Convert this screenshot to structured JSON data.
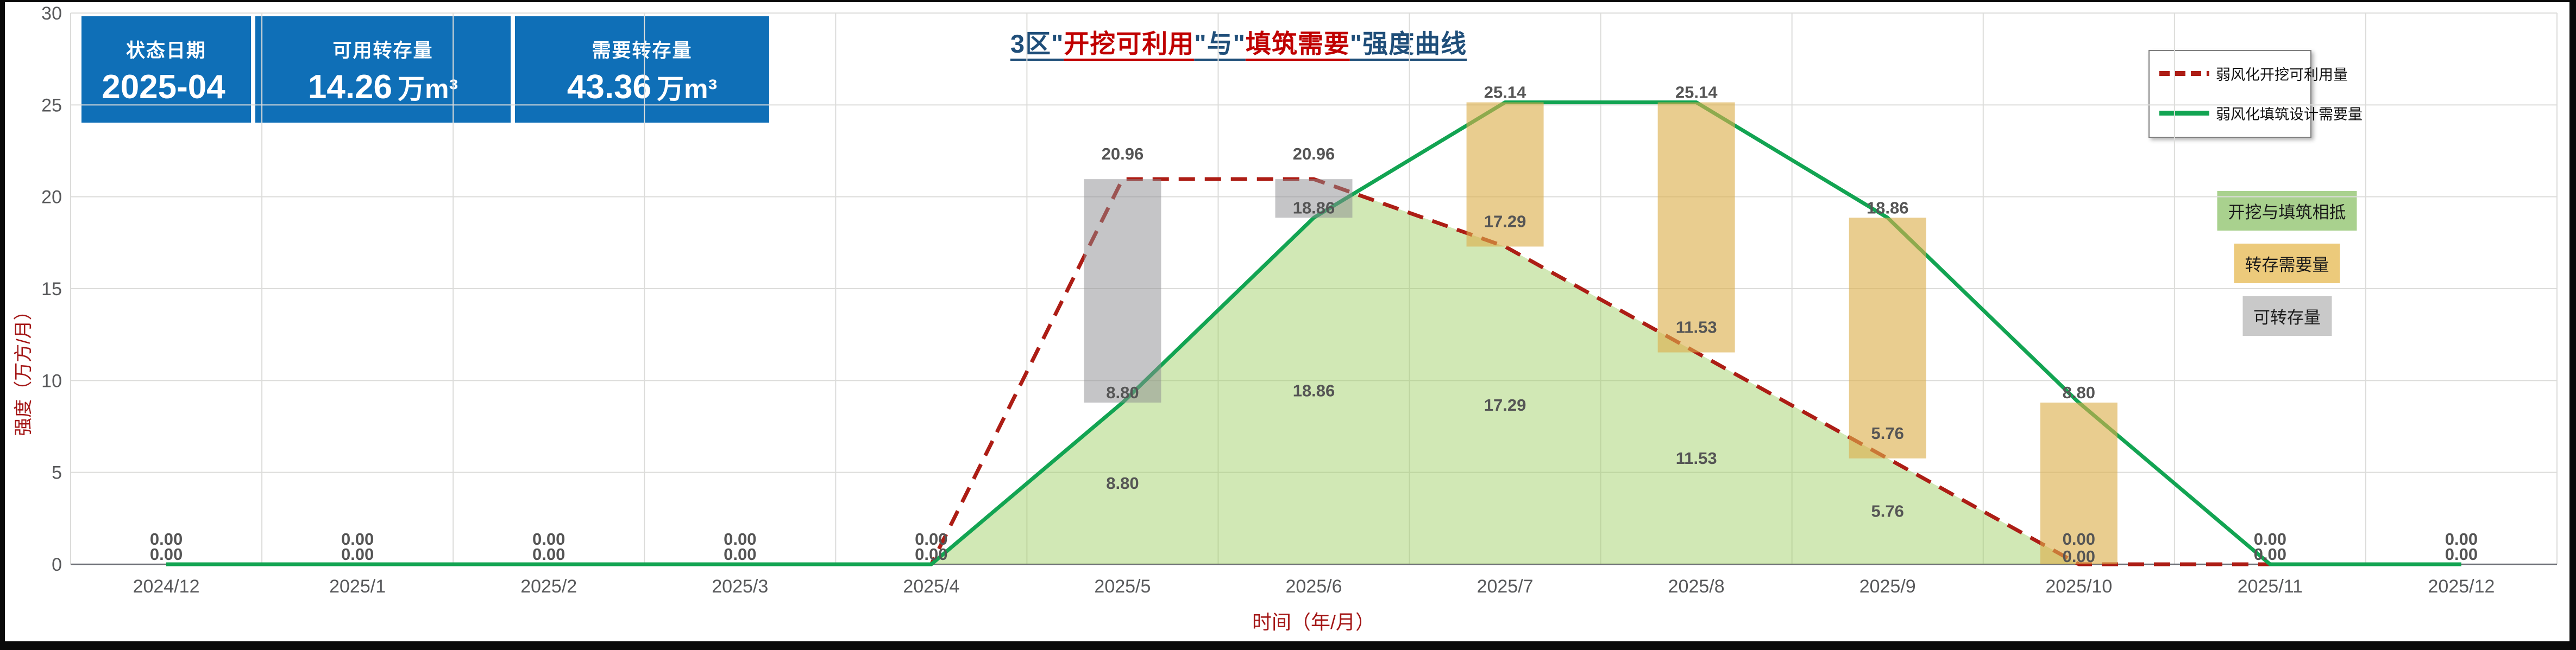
{
  "stat_cards": [
    {
      "label": "状态日期",
      "value": "2025-04",
      "unit": ""
    },
    {
      "label": "可用转存量",
      "value": "14.26",
      "unit": "万m³"
    },
    {
      "label": "需要转存量",
      "value": "43.36",
      "unit": "万m³"
    }
  ],
  "title": {
    "full_text": "3区\"开挖可利用\"与\"填筑需要\"强度曲线",
    "segments": [
      {
        "text": "3区\"",
        "color": "#1f4e79"
      },
      {
        "text": "开挖可利用",
        "color": "#c00000"
      },
      {
        "text": "\"与\"",
        "color": "#1f4e79"
      },
      {
        "text": "填筑需要",
        "color": "#c00000"
      },
      {
        "text": "\"强度曲线",
        "color": "#1f4e79"
      }
    ]
  },
  "legend": {
    "items": [
      {
        "label": "弱风化开挖可利用量",
        "color": "#ad1d15",
        "dash": true
      },
      {
        "label": "弱风化填筑设计需要量",
        "color": "#12a452",
        "dash": false
      }
    ]
  },
  "chips": [
    {
      "label": "开挖与填筑相抵",
      "bg": "#a9d18e"
    },
    {
      "label": "转存需要量",
      "bg": "#ecca7b"
    },
    {
      "label": "可转存量",
      "bg": "#c9c9c9"
    }
  ],
  "chart_data": {
    "type": "combo",
    "title": "3区\"开挖可利用\"与\"填筑需要\"强度曲线",
    "xlabel": "时间（年/月）",
    "ylabel": "强度（万方/月）",
    "ylim": [
      0,
      30
    ],
    "yticks": [
      0,
      5,
      10,
      15,
      20,
      25,
      30
    ],
    "grid": true,
    "legend_position": "top-right",
    "categories": [
      "2024/12",
      "2025/1",
      "2025/2",
      "2025/3",
      "2025/4",
      "2025/5",
      "2025/6",
      "2025/7",
      "2025/8",
      "2025/9",
      "2025/10",
      "2025/11",
      "2025/12"
    ],
    "series": [
      {
        "name": "弱风化开挖可利用量",
        "type": "line",
        "style": "dashed",
        "color": "#ad1d15",
        "values": [
          0.0,
          0.0,
          0.0,
          0.0,
          0.0,
          20.96,
          20.96,
          17.29,
          11.53,
          5.76,
          0.0,
          0.0,
          0.0
        ]
      },
      {
        "name": "弱风化填筑设计需要量",
        "type": "line",
        "style": "solid",
        "color": "#12a452",
        "values": [
          0.0,
          0.0,
          0.0,
          0.0,
          0.0,
          8.8,
          18.86,
          25.14,
          25.14,
          18.86,
          8.8,
          0.0,
          0.0
        ]
      },
      {
        "name": "开挖与填筑相抵",
        "type": "area-min-envelope",
        "color": "rgba(154,203,92,0.45)",
        "values": [
          0.0,
          0.0,
          0.0,
          0.0,
          0.0,
          8.8,
          18.86,
          17.29,
          11.53,
          5.76,
          0.0,
          0.0,
          0.0
        ]
      },
      {
        "name": "可转存量",
        "type": "bar-range",
        "color": "rgba(139,139,144,0.50)",
        "bars": [
          {
            "category": "2025/5",
            "from": 8.8,
            "to": 20.96
          },
          {
            "category": "2025/6",
            "from": 18.86,
            "to": 20.96
          }
        ]
      },
      {
        "name": "转存需要量",
        "type": "bar-range",
        "color": "rgba(220,174,74,0.62)",
        "bars": [
          {
            "category": "2025/7",
            "from": 17.29,
            "to": 25.14
          },
          {
            "category": "2025/8",
            "from": 11.53,
            "to": 25.14
          },
          {
            "category": "2025/9",
            "from": 5.76,
            "to": 18.86
          },
          {
            "category": "2025/10",
            "from": 0.0,
            "to": 8.8
          }
        ]
      }
    ],
    "label_format": "0.00",
    "label_color": "#555555",
    "tick_color": "#58595b",
    "grid_color": "#dcdcda",
    "axis_line_color": "#71737a"
  }
}
